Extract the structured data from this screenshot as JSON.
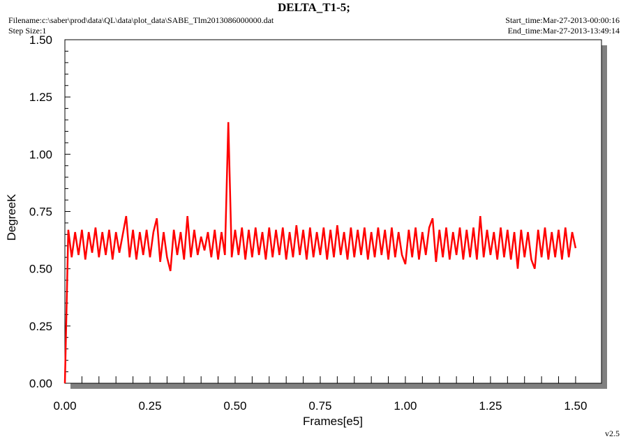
{
  "chart_data": {
    "type": "line",
    "title": "DELTA_T1-5;",
    "filename": "Filename:c:\\saber\\prod\\data\\QL\\data\\plot_data\\SABE_Tlm2013086000000.dat",
    "step_size": "Step Size:1",
    "start_time": "Start_time:Mar-27-2013-00:00:16",
    "end_time": "End_time:Mar-27-2013-13:49:14",
    "version": "v2.5",
    "xlabel": "Frames[e5]",
    "ylabel": "DegreeK",
    "color": "#ff0000",
    "xlim": [
      0,
      1.576
    ],
    "ylim": [
      0,
      1.5
    ],
    "xticks": [
      {
        "value": 0,
        "label": "0.00"
      },
      {
        "value": 0.25,
        "label": "0.25"
      },
      {
        "value": 0.5,
        "label": "0.50"
      },
      {
        "value": 0.75,
        "label": "0.75"
      },
      {
        "value": 1,
        "label": "1.00"
      },
      {
        "value": 1.25,
        "label": "1.25"
      },
      {
        "value": 1.5,
        "label": "1.50"
      }
    ],
    "yticks": [
      {
        "value": 0,
        "label": "0.00"
      },
      {
        "value": 0.25,
        "label": "0.25"
      },
      {
        "value": 0.5,
        "label": "0.50"
      },
      {
        "value": 0.75,
        "label": "0.75"
      },
      {
        "value": 1,
        "label": "1.00"
      },
      {
        "value": 1.25,
        "label": "1.25"
      },
      {
        "value": 1.5,
        "label": "1.50"
      }
    ],
    "x": [
      0,
      0.01,
      0.02,
      0.03,
      0.04,
      0.05,
      0.06,
      0.07,
      0.08,
      0.09,
      0.1,
      0.11,
      0.12,
      0.13,
      0.14,
      0.15,
      0.16,
      0.17,
      0.18,
      0.19,
      0.2,
      0.21,
      0.22,
      0.23,
      0.24,
      0.25,
      0.26,
      0.27,
      0.28,
      0.29,
      0.3,
      0.31,
      0.32,
      0.33,
      0.34,
      0.35,
      0.36,
      0.37,
      0.38,
      0.39,
      0.4,
      0.41,
      0.42,
      0.43,
      0.44,
      0.45,
      0.46,
      0.47,
      0.48,
      0.49,
      0.5,
      0.51,
      0.52,
      0.53,
      0.54,
      0.55,
      0.56,
      0.57,
      0.58,
      0.59,
      0.6,
      0.61,
      0.62,
      0.63,
      0.64,
      0.65,
      0.66,
      0.67,
      0.68,
      0.69,
      0.7,
      0.71,
      0.72,
      0.73,
      0.74,
      0.75,
      0.76,
      0.77,
      0.78,
      0.79,
      0.8,
      0.81,
      0.82,
      0.83,
      0.84,
      0.85,
      0.86,
      0.87,
      0.88,
      0.89,
      0.9,
      0.91,
      0.92,
      0.93,
      0.94,
      0.95,
      0.96,
      0.97,
      0.98,
      0.99,
      1,
      1.01,
      1.02,
      1.03,
      1.04,
      1.05,
      1.06,
      1.07,
      1.08,
      1.09,
      1.1,
      1.11,
      1.12,
      1.13,
      1.14,
      1.15,
      1.16,
      1.17,
      1.18,
      1.19,
      1.2,
      1.21,
      1.22,
      1.23,
      1.24,
      1.25,
      1.26,
      1.27,
      1.28,
      1.29,
      1.3,
      1.31,
      1.32,
      1.33,
      1.34,
      1.35,
      1.36,
      1.37,
      1.38,
      1.39,
      1.4,
      1.41,
      1.42,
      1.43,
      1.44,
      1.45,
      1.46,
      1.47,
      1.48,
      1.49,
      1.5
    ],
    "values": [
      0,
      0.67,
      0.55,
      0.66,
      0.56,
      0.67,
      0.54,
      0.66,
      0.57,
      0.68,
      0.55,
      0.66,
      0.56,
      0.67,
      0.54,
      0.66,
      0.57,
      0.65,
      0.73,
      0.55,
      0.67,
      0.54,
      0.66,
      0.56,
      0.67,
      0.55,
      0.66,
      0.72,
      0.53,
      0.66,
      0.55,
      0.49,
      0.67,
      0.56,
      0.66,
      0.54,
      0.73,
      0.55,
      0.67,
      0.56,
      0.64,
      0.58,
      0.66,
      0.55,
      0.67,
      0.54,
      0.66,
      0.56,
      1.14,
      0.55,
      0.67,
      0.56,
      0.68,
      0.54,
      0.67,
      0.55,
      0.68,
      0.56,
      0.66,
      0.54,
      0.68,
      0.55,
      0.67,
      0.56,
      0.68,
      0.54,
      0.66,
      0.55,
      0.69,
      0.56,
      0.67,
      0.54,
      0.68,
      0.55,
      0.66,
      0.56,
      0.68,
      0.54,
      0.67,
      0.55,
      0.69,
      0.56,
      0.66,
      0.54,
      0.68,
      0.55,
      0.67,
      0.56,
      0.68,
      0.54,
      0.66,
      0.55,
      0.68,
      0.56,
      0.67,
      0.54,
      0.68,
      0.55,
      0.66,
      0.56,
      0.52,
      0.67,
      0.55,
      0.68,
      0.54,
      0.66,
      0.56,
      0.68,
      0.72,
      0.53,
      0.67,
      0.55,
      0.68,
      0.54,
      0.66,
      0.56,
      0.68,
      0.54,
      0.67,
      0.55,
      0.68,
      0.54,
      0.73,
      0.55,
      0.67,
      0.56,
      0.66,
      0.54,
      0.68,
      0.55,
      0.67,
      0.54,
      0.66,
      0.5,
      0.67,
      0.55,
      0.66,
      0.54,
      0.5,
      0.67,
      0.55,
      0.68,
      0.54,
      0.66,
      0.55,
      0.67,
      0.54,
      0.68,
      0.55,
      0.66,
      0.59
    ]
  }
}
